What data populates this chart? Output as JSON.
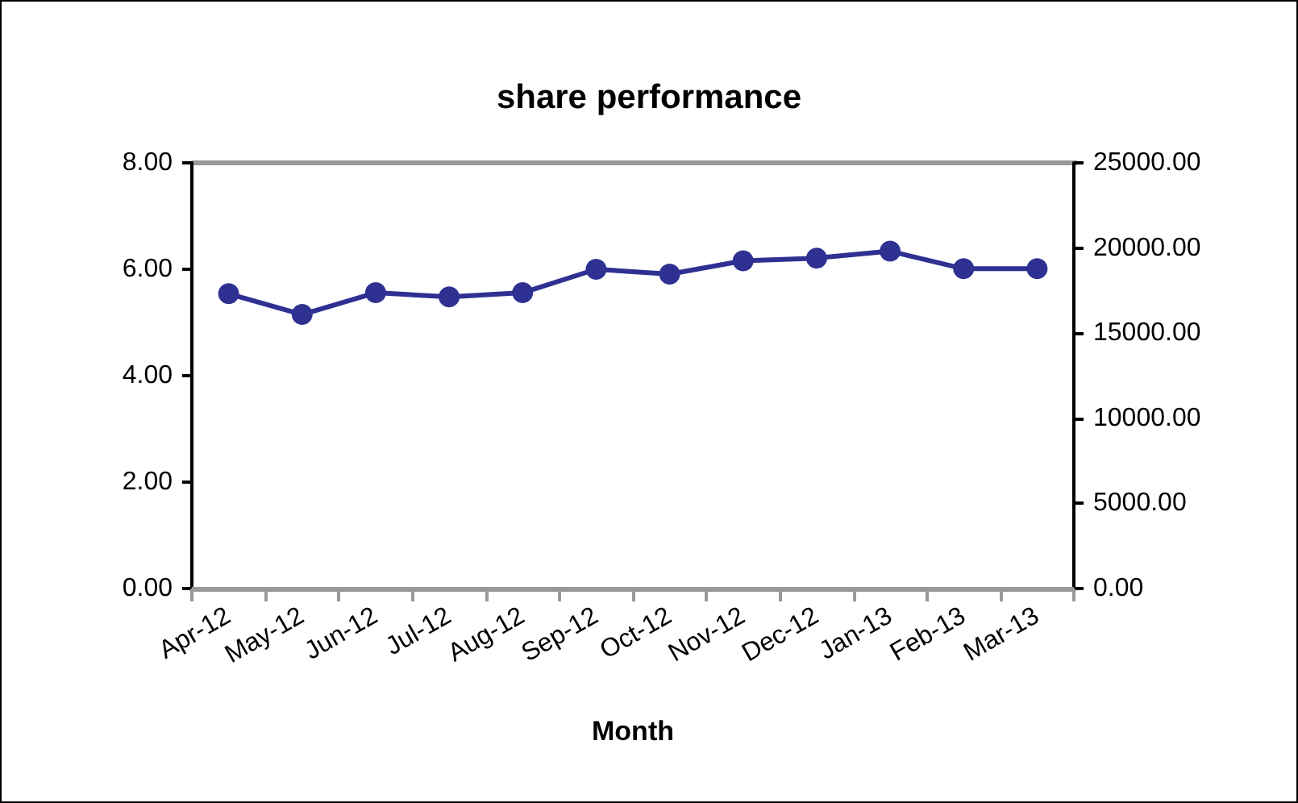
{
  "chart_data": {
    "type": "line",
    "title": "share performance",
    "xlabel": "Month",
    "categories": [
      "Apr-12",
      "May-12",
      "Jun-12",
      "Jul-12",
      "Aug-12",
      "Sep-12",
      "Oct-12",
      "Nov-12",
      "Dec-12",
      "Jan-13",
      "Feb-13",
      "Mar-13"
    ],
    "series": [
      {
        "color": "#2e3192",
        "values": [
          5.54,
          5.15,
          5.56,
          5.48,
          5.56,
          6.0,
          5.91,
          6.16,
          6.21,
          6.34,
          6.01,
          6.01
        ]
      }
    ],
    "ylim": [
      0,
      8
    ],
    "yticks": [
      {
        "value": 0,
        "label": "0.00"
      },
      {
        "value": 2,
        "label": "2.00"
      },
      {
        "value": 4,
        "label": "4.00"
      },
      {
        "value": 6,
        "label": "6.00"
      },
      {
        "value": 8,
        "label": "8.00"
      }
    ],
    "y2lim": [
      0,
      25000
    ],
    "y2ticks": [
      {
        "value": 0,
        "label": "0.00"
      },
      {
        "value": 5000,
        "label": "5000.00"
      },
      {
        "value": 10000,
        "label": "10000.00"
      },
      {
        "value": 15000,
        "label": "15000.00"
      },
      {
        "value": 20000,
        "label": "20000.00"
      },
      {
        "value": 25000,
        "label": "25000.00"
      }
    ],
    "grid": false,
    "marker": "circle",
    "line_style": "solid"
  }
}
